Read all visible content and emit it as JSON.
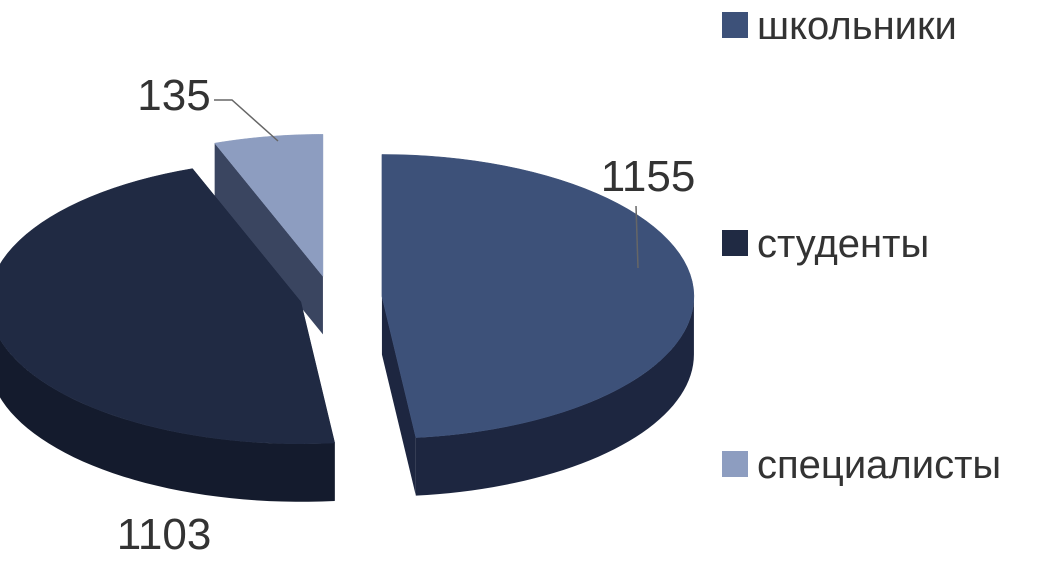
{
  "chart_data": {
    "type": "pie",
    "style": "3d-exploded",
    "categories": [
      "школьники",
      "студенты",
      "специалисты"
    ],
    "values": [
      1155,
      1103,
      135
    ],
    "colors": [
      "#3d5179",
      "#202a43",
      "#8d9dc0"
    ],
    "side_colors": [
      "#1d2640",
      "#141b2d",
      "#3a4560"
    ],
    "legend": {
      "placement": "right",
      "entries": [
        "школьники",
        "студенты",
        "специалисты"
      ]
    },
    "data_labels": [
      "1155",
      "1103",
      "135"
    ]
  }
}
